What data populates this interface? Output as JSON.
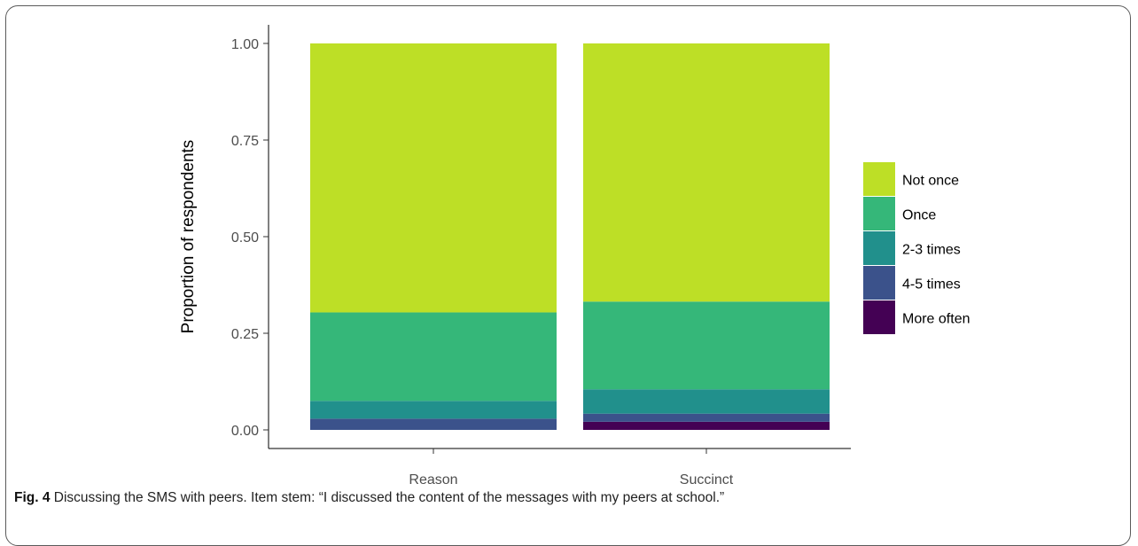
{
  "figure": {
    "label": "Fig. 4",
    "caption": "Discussing the SMS with peers. Item stem: “I discussed the content of the messages with my peers at school.”"
  },
  "chart_data": {
    "type": "bar",
    "stacked": true,
    "categories": [
      "Reason",
      "Succinct"
    ],
    "ylabel": "Proportion of respondents",
    "xlabel": "",
    "ylim": [
      0,
      1
    ],
    "yticks": [
      "0.00",
      "0.25",
      "0.50",
      "0.75",
      "1.00"
    ],
    "grid": false,
    "legend_position": "right",
    "series": [
      {
        "name": "More often",
        "color": "#440154",
        "values": [
          0.0,
          0.021
        ]
      },
      {
        "name": "4-5 times",
        "color": "#3b528b",
        "values": [
          0.029,
          0.021
        ]
      },
      {
        "name": "2-3 times",
        "color": "#21908c",
        "values": [
          0.046,
          0.063
        ]
      },
      {
        "name": "Once",
        "color": "#35b779",
        "values": [
          0.229,
          0.227
        ]
      },
      {
        "name": "Not once",
        "color": "#bddf26",
        "values": [
          0.696,
          0.668
        ]
      }
    ],
    "legend_order": [
      "Not once",
      "Once",
      "2-3 times",
      "4-5 times",
      "More often"
    ]
  }
}
